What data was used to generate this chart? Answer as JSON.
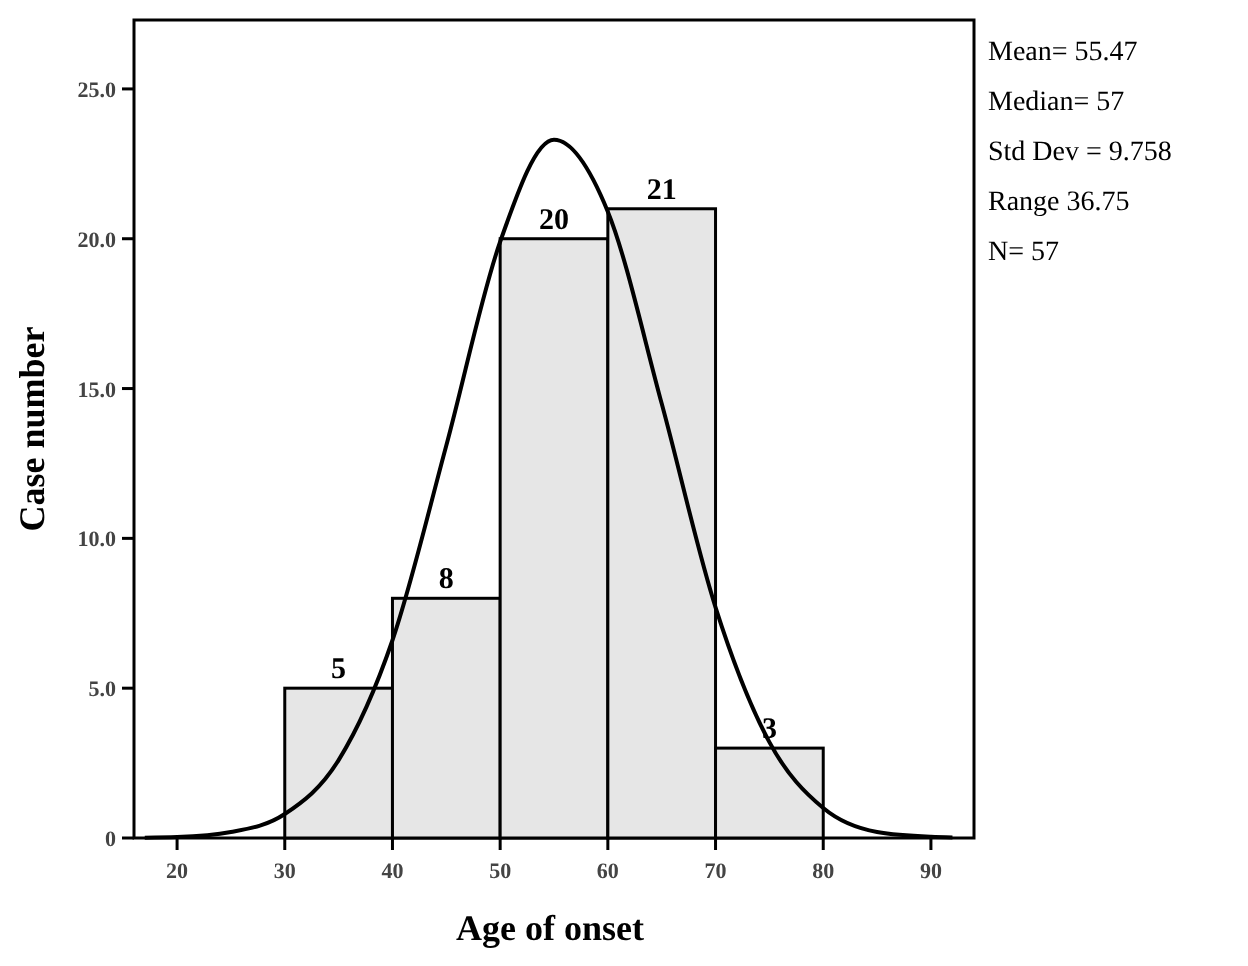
{
  "chart_data": {
    "type": "histogram",
    "xlabel": "Age of onset",
    "ylabel": "Case number",
    "bins": [
      30,
      40,
      50,
      60,
      70,
      80
    ],
    "values": [
      5,
      8,
      20,
      21,
      3
    ],
    "color": "#e6e6e6",
    "value_labels": [
      "5",
      "8",
      "20",
      "21",
      "3"
    ],
    "series": [
      {
        "type": "line",
        "color": "#000000",
        "x": [
          17,
          20,
          25,
          30,
          35,
          40,
          45,
          50,
          55,
          60,
          65,
          70,
          75,
          80,
          85,
          90,
          92
        ],
        "values": [
          0.01,
          0.03,
          0.2,
          0.8,
          2.6,
          6.6,
          13.1,
          19.9,
          23.3,
          20.9,
          14.5,
          7.7,
          3.2,
          1.0,
          0.2,
          0.04,
          0.02
        ]
      }
    ],
    "xlim": [
      16,
      94
    ],
    "xticks": [
      20,
      30,
      40,
      50,
      60,
      70,
      80,
      90
    ],
    "ylim": [
      0,
      27.3
    ],
    "yticks": [
      0,
      {
        "value": 5,
        "label": "5.0"
      },
      {
        "value": 10,
        "label": "10.0"
      },
      {
        "value": 15,
        "label": "15.0"
      },
      {
        "value": 20,
        "label": "20.0"
      },
      {
        "value": 25,
        "label": "25.0"
      }
    ],
    "grid": false,
    "annotations": [
      "Mean= 55.47",
      "Median= 57",
      "Std Dev = 9.758",
      "Range 36.75",
      "N= 57"
    ]
  }
}
